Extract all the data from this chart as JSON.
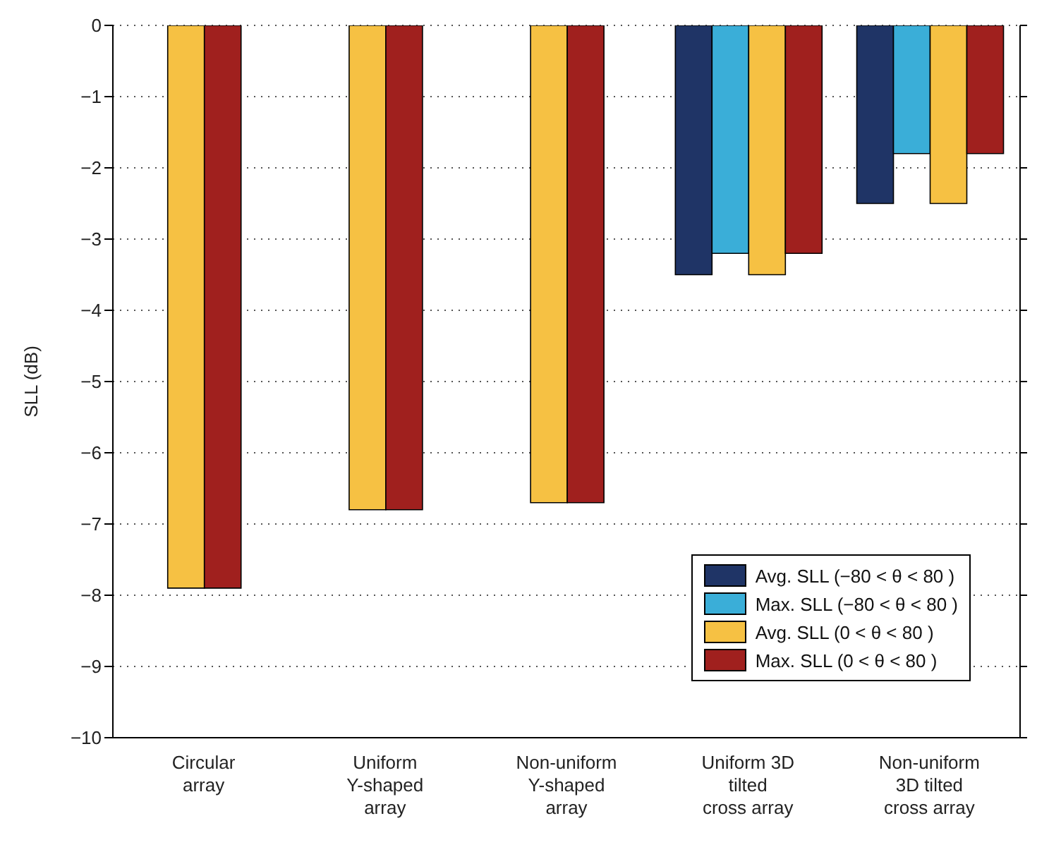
{
  "chart_data": {
    "type": "bar",
    "ylabel": "SLL (dB)",
    "categories": [
      "Circular array",
      "Uniform Y-shaped array",
      "Non-uniform Y-shaped array",
      "Uniform 3D tilted cross array",
      "Non-uniform 3D tilted cross array"
    ],
    "series": [
      {
        "name": "Avg. SLL (−80 < θ < 80 )",
        "color": "#1f3466",
        "values": [
          null,
          null,
          null,
          -3.5,
          -2.5
        ]
      },
      {
        "name": "Max. SLL (−80 < θ < 80 )",
        "color": "#3aaed8",
        "values": [
          null,
          null,
          null,
          -3.2,
          -1.8
        ]
      },
      {
        "name": "Avg. SLL (0 < θ < 80 )",
        "color": "#f6c143",
        "values": [
          -7.9,
          -6.8,
          -6.7,
          -3.5,
          -2.5
        ]
      },
      {
        "name": "Max. SLL (0 < θ < 80 )",
        "color": "#a0201e",
        "values": [
          -7.9,
          -6.8,
          -6.7,
          -3.2,
          -1.8
        ]
      }
    ],
    "ylim": [
      -10,
      0
    ],
    "yticks": [
      -10,
      -9,
      -8,
      -7,
      -6,
      -5,
      -4,
      -3,
      -2,
      -1,
      0
    ],
    "grid": "y",
    "legend": "bottom right"
  }
}
